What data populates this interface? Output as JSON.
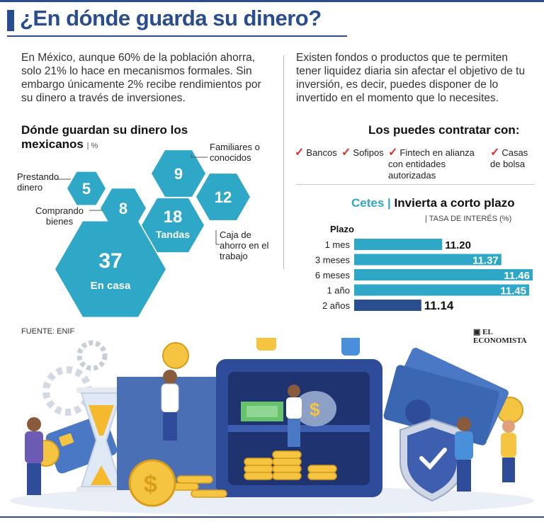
{
  "title": "¿En dónde guarda su dinero?",
  "intro_left": "En México, aunque 60% de la población ahorra, solo 21% lo hace en mecanismos formales. Sin embargo únicamente 2% recibe rendimientos por su dinero a través de inversiones.",
  "intro_right": "Existen fondos o productos que te permiten tener liquidez diaria sin afectar el objetivo de tu inversión, es decir, puedes disponer de lo invertido en el momento que lo necesites.",
  "contratar": {
    "title": "Los puedes contratar con:",
    "check": "✓",
    "options": [
      "Bancos",
      "Sofipos",
      "Fintech en alianza con entidades autorizadas",
      "Casas de bolsa"
    ]
  },
  "footer": {
    "source": "FUENTE: ENIF",
    "brand": "EL ECONOMISTA"
  },
  "colors": {
    "title": "#2a4d8f",
    "hex": "#2fa8c8",
    "bar": "#2fa8c8",
    "bar_dark": "#2a4d8f"
  },
  "chart_data": [
    {
      "type": "hexagon-bubble",
      "title": "Dónde guardan su dinero los mexicanos",
      "unit": "%",
      "categories": [
        "Prestando dinero",
        "Comprando bienes",
        "Familiares o conocidos",
        "Tandas",
        "Caja de ahorro en el trabajo",
        "En casa"
      ],
      "values": [
        5,
        8,
        9,
        18,
        12,
        37
      ],
      "inside_labels": [
        "",
        "",
        "",
        "Tandas",
        "",
        "En casa"
      ]
    },
    {
      "type": "bar",
      "orientation": "horizontal",
      "title_prefix": "Cetes",
      "title": "Invierta a corto plazo",
      "subtitle": "| TASA DE INTERÉS (%)",
      "axis_label": "Plazo",
      "categories": [
        "1 mes",
        "3 meses",
        "6 meses",
        "1 año",
        "2 años"
      ],
      "values": [
        11.2,
        11.37,
        11.46,
        11.45,
        11.14
      ],
      "value_labels": [
        "11.20",
        "11.37",
        "11.46",
        "11.45",
        "11.14"
      ],
      "xlim": [
        11.0,
        11.46
      ]
    }
  ]
}
